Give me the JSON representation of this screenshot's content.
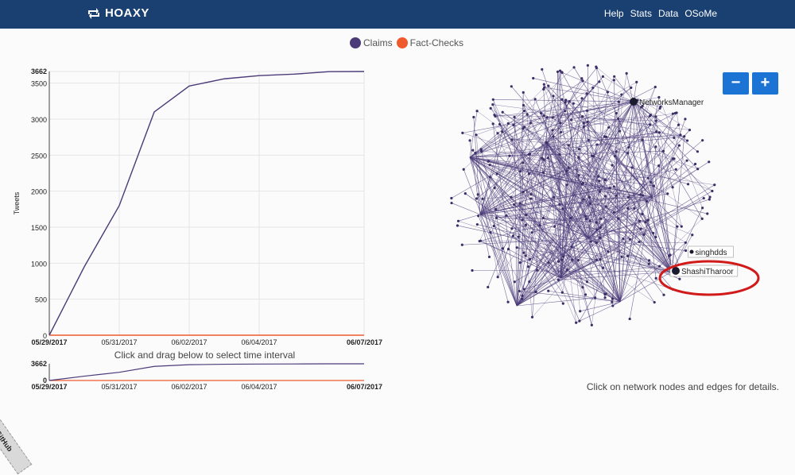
{
  "navbar": {
    "brand": "HOAXY",
    "links": [
      "Help",
      "Stats",
      "Data",
      "OSoMe"
    ],
    "bg_color": "#1a4071"
  },
  "legend": {
    "claims_label": "Claims",
    "claims_color": "#4b3b78",
    "factchecks_label": "Fact-Checks",
    "factchecks_color": "#ef5a2c"
  },
  "chart_data": [
    {
      "type": "line",
      "ylabel": "Tweets",
      "xlabel": "",
      "x_ticks": [
        "05/29/2017",
        "05/31/2017",
        "06/02/2017",
        "06/04/2017",
        "06/07/2017"
      ],
      "y_ticks": [
        0,
        500,
        1000,
        1500,
        2000,
        2500,
        3000,
        3500,
        3662
      ],
      "ylim": [
        0,
        3662
      ],
      "grid": true,
      "series": [
        {
          "name": "Claims",
          "color": "#4b3b78",
          "x": [
            "05/29/2017",
            "05/30/2017",
            "05/31/2017",
            "06/01/2017",
            "06/02/2017",
            "06/03/2017",
            "06/04/2017",
            "06/05/2017",
            "06/06/2017",
            "06/07/2017"
          ],
          "values": [
            0,
            950,
            1800,
            3100,
            3460,
            3560,
            3605,
            3625,
            3660,
            3662
          ]
        },
        {
          "name": "Fact-Checks",
          "color": "#ef5a2c",
          "x": [
            "05/29/2017",
            "06/07/2017"
          ],
          "values": [
            0,
            0
          ]
        }
      ]
    },
    {
      "type": "line",
      "x_ticks": [
        "05/29/2017",
        "05/31/2017",
        "06/02/2017",
        "06/04/2017",
        "06/07/2017"
      ],
      "y_ticks": [
        0,
        3662
      ],
      "ylim": [
        0,
        3662
      ],
      "series": [
        {
          "name": "Claims",
          "color": "#4b3b78",
          "x": [
            "05/29/2017",
            "05/30/2017",
            "05/31/2017",
            "06/01/2017",
            "06/02/2017",
            "06/03/2017",
            "06/04/2017",
            "06/05/2017",
            "06/06/2017",
            "06/07/2017"
          ],
          "values": [
            0,
            950,
            1800,
            3100,
            3460,
            3560,
            3605,
            3625,
            3660,
            3662
          ]
        },
        {
          "name": "Fact-Checks",
          "color": "#ef5a2c",
          "x": [
            "05/29/2017",
            "06/07/2017"
          ],
          "values": [
            0,
            0
          ]
        }
      ]
    }
  ],
  "chart_hint": "Click and drag below to select time interval",
  "network": {
    "nodes_labeled": [
      "NetworksManager",
      "singhdds",
      "ShashiTharoor"
    ],
    "hint": "Click on network nodes and edges for details.",
    "zoom_out": "−",
    "zoom_in": "+",
    "highlight_color": "#d11a1a"
  },
  "fork_ribbon": "Fork me on GitHub"
}
